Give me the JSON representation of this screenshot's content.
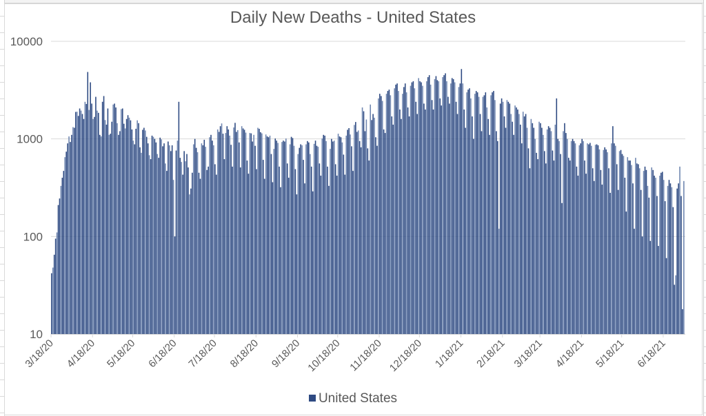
{
  "chart_data": {
    "type": "bar",
    "title": "Daily New Deaths - United States",
    "xlabel": "",
    "ylabel": "",
    "yscale": "log",
    "ylim": [
      10,
      10000
    ],
    "yticks": [
      "10",
      "100",
      "1000",
      "10000"
    ],
    "ytick_values": [
      10,
      100,
      1000,
      10000
    ],
    "grid": true,
    "legend": {
      "position": "bottom",
      "entries": [
        "United States"
      ]
    },
    "x_start": "3/18/20",
    "xtick_labels": [
      "3/18/20",
      "4/18/20",
      "5/18/20",
      "6/18/20",
      "7/18/20",
      "8/18/20",
      "9/18/20",
      "10/18/20",
      "11/18/20",
      "12/18/20",
      "1/18/21",
      "2/18/21",
      "3/18/21",
      "4/18/21",
      "5/18/21",
      "6/18/21"
    ],
    "xtick_day_offsets": [
      0,
      31,
      61,
      92,
      122,
      153,
      184,
      214,
      245,
      275,
      306,
      337,
      365,
      396,
      426,
      457
    ],
    "series": [
      {
        "name": "United States",
        "color": "#2e4a82",
        "color_alt": "#6f86b0",
        "values": [
          42,
          48,
          65,
          95,
          110,
          210,
          245,
          330,
          400,
          470,
          650,
          740,
          900,
          1060,
          930,
          1100,
          1320,
          1300,
          1890,
          1900,
          1720,
          2050,
          1950,
          1800,
          1600,
          2400,
          2280,
          4850,
          1980,
          3800,
          2300,
          1600,
          1680,
          2700,
          1950,
          1850,
          1100,
          1060,
          2400,
          2750,
          1560,
          1400,
          2050,
          1100,
          1130,
          1500,
          2250,
          2300,
          2100,
          1450,
          1100,
          1200,
          2020,
          2050,
          1430,
          1280,
          1600,
          1750,
          1650,
          1550,
          1250,
          960,
          880,
          1270,
          1550,
          1450,
          820,
          720,
          1240,
          1300,
          1220,
          1050,
          900,
          680,
          620,
          1080,
          1050,
          1000,
          920,
          700,
          640,
          1030,
          990,
          840,
          900,
          560,
          470,
          940,
          860,
          750,
          860,
          380,
          100,
          760,
          960,
          2400,
          640,
          580,
          430,
          750,
          590,
          700,
          510,
          270,
          310,
          450,
          880,
          1000,
          810,
          730,
          450,
          390,
          900,
          860,
          980,
          830,
          480,
          520,
          1040,
          1100,
          960,
          860,
          550,
          430,
          1250,
          1180,
          1350,
          1440,
          1130,
          620,
          1150,
          1350,
          1250,
          1080,
          870,
          520,
          1310,
          1460,
          1180,
          1230,
          920,
          510,
          1350,
          1280,
          1240,
          1160,
          600,
          440,
          1150,
          1140,
          940,
          1100,
          850,
          490,
          1300,
          1270,
          1170,
          1140,
          610,
          390,
          1110,
          1060,
          1040,
          1080,
          700,
          360,
          790,
          1010,
          960,
          910,
          520,
          320,
          930,
          960,
          940,
          1010,
          560,
          400,
          880,
          1050,
          1020,
          850,
          490,
          270,
          700,
          810,
          880,
          860,
          610,
          350,
          880,
          950,
          920,
          700,
          520,
          290,
          890,
          960,
          850,
          830,
          560,
          420,
          1010,
          1100,
          1080,
          950,
          520,
          330,
          790,
          1000,
          940,
          960,
          550,
          420,
          1130,
          1060,
          1040,
          920,
          690,
          430,
          1080,
          1240,
          1290,
          1110,
          840,
          470,
          1390,
          1490,
          1180,
          1220,
          950,
          820,
          2100,
          1920,
          1200,
          1580,
          800,
          600,
          2250,
          1560,
          1800,
          1650,
          1040,
          850,
          2600,
          2900,
          2750,
          2450,
          1250,
          1150,
          2900,
          3100,
          3200,
          2800,
          1700,
          1400,
          3300,
          3600,
          3700,
          3100,
          2000,
          1600,
          2900,
          3400,
          3700,
          3000,
          2100,
          1700,
          3500,
          3800,
          3900,
          3300,
          2400,
          1800,
          4200,
          3900,
          3800,
          3500,
          2300,
          2000,
          3900,
          4300,
          4500,
          3600,
          2500,
          2000,
          4100,
          4400,
          4000,
          3900,
          2600,
          2200,
          4300,
          4500,
          4700,
          3900,
          2700,
          2300,
          3700,
          4200,
          4100,
          3800,
          2400,
          1800,
          3400,
          3700,
          5200,
          3700,
          2000,
          1300,
          3000,
          3200,
          3300,
          2600,
          1700,
          1000,
          2900,
          3100,
          3000,
          2700,
          1800,
          1200,
          2700,
          2800,
          3000,
          2100,
          1600,
          1100,
          2800,
          3000,
          3100,
          2500,
          1200,
          950,
          120,
          2300,
          2600,
          2400,
          1700,
          1300,
          2500,
          2400,
          2300,
          1800,
          1500,
          1100,
          2200,
          2100,
          2000,
          1800,
          1400,
          900,
          1900,
          1700,
          1800,
          1300,
          800,
          500,
          1600,
          1450,
          1300,
          1000,
          720,
          620,
          1500,
          1450,
          1300,
          1100,
          750,
          560,
          1250,
          1350,
          1300,
          1200,
          760,
          600,
          1400,
          2600,
          1000,
          950,
          700,
          220,
          1200,
          1450,
          1150,
          1000,
          640,
          600,
          950,
          1000,
          950,
          900,
          520,
          420,
          860,
          900,
          1000,
          950,
          600,
          440,
          900,
          880,
          910,
          850,
          500,
          370,
          870,
          880,
          860,
          780,
          480,
          340,
          770,
          820,
          780,
          730,
          500,
          280,
          900,
          1350,
          900,
          850,
          550,
          300,
          750,
          770,
          700,
          670,
          400,
          180,
          650,
          600,
          600,
          540,
          350,
          120,
          640,
          560,
          550,
          500,
          300,
          100,
          470,
          520,
          480,
          330,
          250,
          90,
          510,
          480,
          420,
          400,
          260,
          80,
          420,
          450,
          460,
          380,
          230,
          60,
          330,
          380,
          350,
          320,
          200,
          32,
          40,
          310,
          350,
          520,
          260,
          18,
          370
        ]
      }
    ]
  }
}
